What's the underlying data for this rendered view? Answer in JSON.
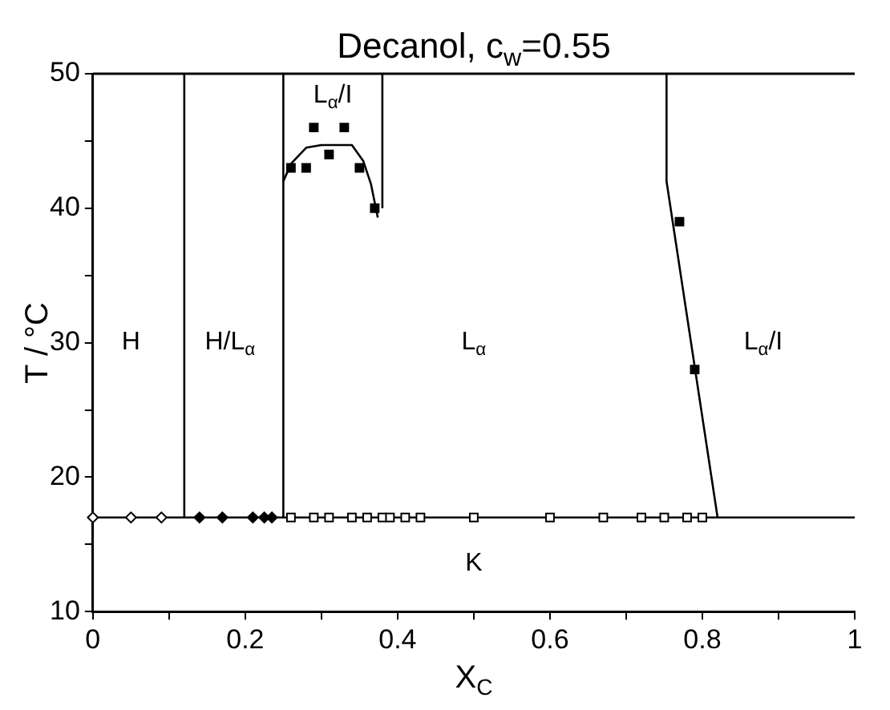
{
  "chart_data": {
    "type": "scatter",
    "title": "Decanol, c$_{w}$=0.55",
    "xlabel": "X$_{C}$",
    "ylabel": "T / °C",
    "xlim": [
      0,
      1
    ],
    "ylim": [
      10,
      50
    ],
    "xticks": [
      0,
      {
        "value": 0.1,
        "label": null
      },
      {
        "value": 0.2,
        "label": "0.2"
      },
      {
        "value": 0.3,
        "label": null
      },
      {
        "value": 0.4,
        "label": "0.4"
      },
      {
        "value": 0.5,
        "label": null
      },
      {
        "value": 0.6,
        "label": "0.6"
      },
      {
        "value": 0.7,
        "label": null
      },
      {
        "value": 0.8,
        "label": "0.8"
      },
      {
        "value": 0.9,
        "label": null
      },
      1
    ],
    "yticks": [
      10,
      {
        "value": 15,
        "label": null
      },
      20,
      {
        "value": 25,
        "label": null
      },
      30,
      {
        "value": 35,
        "label": null
      },
      40,
      {
        "value": 45,
        "label": null
      },
      50
    ],
    "grid": false,
    "legend": false,
    "ref_lines": [
      {
        "axis": "y",
        "value": 17,
        "color": "#000000",
        "line_style": "solid"
      }
    ],
    "series": [
      {
        "type": "line",
        "marker": "none",
        "line_style": "solid",
        "color": "#000000",
        "x": [
          0.12,
          0.12
        ],
        "values": [
          17,
          50
        ]
      },
      {
        "type": "line",
        "marker": "none",
        "line_style": "solid",
        "color": "#000000",
        "x": [
          0.25,
          0.25
        ],
        "values": [
          17,
          50
        ]
      },
      {
        "type": "line",
        "marker": "none",
        "line_style": "solid",
        "color": "#000000",
        "x": [
          0.38,
          0.38
        ],
        "values": [
          40,
          50
        ]
      },
      {
        "type": "line",
        "marker": "none",
        "line_style": "solid",
        "color": "#000000",
        "x": [
          0.753,
          0.753,
          0.82
        ],
        "values": [
          50,
          42,
          17
        ]
      },
      {
        "type": "line",
        "marker": "none",
        "line_style": "solid",
        "color": "#000000",
        "x": [
          0.25,
          0.26,
          0.28,
          0.3,
          0.34,
          0.355,
          0.365,
          0.374
        ],
        "values": [
          42,
          43.3,
          44.5,
          44.7,
          44.7,
          43.5,
          41.8,
          39.3
        ]
      },
      {
        "marker": "square",
        "color": "#000000",
        "x": [
          0.26,
          0.28,
          0.29,
          0.31,
          0.33,
          0.35,
          0.37,
          0.77,
          0.79
        ],
        "values": [
          43,
          43,
          46,
          44,
          46,
          43,
          40,
          39,
          28
        ]
      },
      {
        "marker": "diamond",
        "color": "#ffffff",
        "x": [
          0,
          0.05,
          0.09
        ],
        "values": [
          17,
          17,
          17
        ]
      },
      {
        "marker": "diamond",
        "color": "#000000",
        "x": [
          0.14,
          0.17,
          0.21,
          0.225,
          0.235
        ],
        "values": [
          17,
          17,
          17,
          17,
          17
        ]
      },
      {
        "marker": "square",
        "color": "#ffffff",
        "x": [
          0.26,
          0.29,
          0.31,
          0.34,
          0.36,
          0.38,
          0.39,
          0.41,
          0.43,
          0.5,
          0.6,
          0.67,
          0.72,
          0.75,
          0.78,
          0.8
        ],
        "values": [
          17,
          17,
          17,
          17,
          17,
          17,
          17,
          17,
          17,
          17,
          17,
          17,
          17,
          17,
          17,
          17
        ]
      }
    ],
    "annotations": [
      "H",
      "H/L$_{α}$",
      "L$_{α}$/I",
      "L$_{α}$",
      "L$_{α}$/I",
      "K"
    ]
  }
}
